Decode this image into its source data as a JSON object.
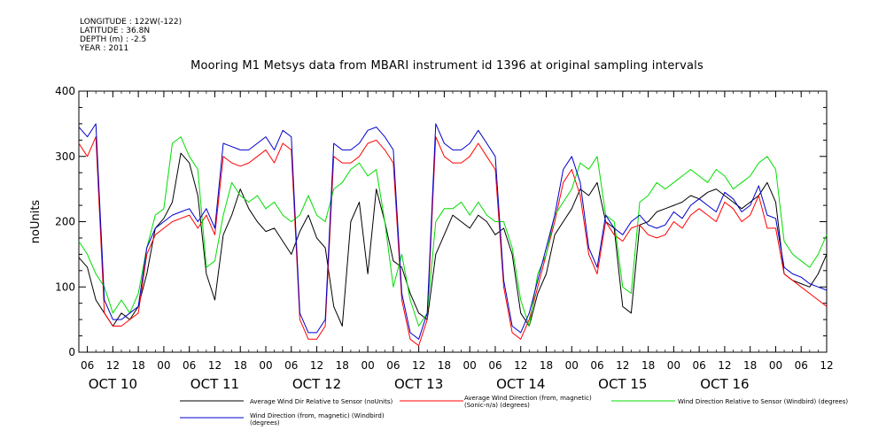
{
  "meta": [
    "LONGITUDE : 122W(-122)",
    "LATITUDE : 36.8N",
    "DEPTH (m) : -2.5",
    "YEAR : 2011"
  ],
  "chart_data": {
    "type": "line",
    "title": "Mooring M1 Metsys data from MBARI instrument id 1396 at original sampling intervals",
    "ylabel": "noUnits",
    "xlabel": "",
    "ylim": [
      0,
      400
    ],
    "y_ticks": [
      "0",
      "100",
      "200",
      "300",
      "400"
    ],
    "x_range_hours": [
      4,
      180
    ],
    "x_hour_ticks": [
      {
        "h": 6,
        "label": "06"
      },
      {
        "h": 12,
        "label": "12"
      },
      {
        "h": 18,
        "label": "18"
      },
      {
        "h": 24,
        "label": "00"
      },
      {
        "h": 30,
        "label": "06"
      },
      {
        "h": 36,
        "label": "12"
      },
      {
        "h": 42,
        "label": "18"
      },
      {
        "h": 48,
        "label": "00"
      },
      {
        "h": 54,
        "label": "06"
      },
      {
        "h": 60,
        "label": "12"
      },
      {
        "h": 66,
        "label": "18"
      },
      {
        "h": 72,
        "label": "00"
      },
      {
        "h": 78,
        "label": "06"
      },
      {
        "h": 84,
        "label": "12"
      },
      {
        "h": 90,
        "label": "18"
      },
      {
        "h": 96,
        "label": "00"
      },
      {
        "h": 102,
        "label": "06"
      },
      {
        "h": 108,
        "label": "12"
      },
      {
        "h": 114,
        "label": "18"
      },
      {
        "h": 120,
        "label": "00"
      },
      {
        "h": 126,
        "label": "06"
      },
      {
        "h": 132,
        "label": "12"
      },
      {
        "h": 138,
        "label": "18"
      },
      {
        "h": 144,
        "label": "00"
      },
      {
        "h": 150,
        "label": "06"
      },
      {
        "h": 156,
        "label": "12"
      },
      {
        "h": 162,
        "label": "18"
      },
      {
        "h": 168,
        "label": "00"
      },
      {
        "h": 174,
        "label": "06"
      },
      {
        "h": 180,
        "label": "12"
      }
    ],
    "x_day_labels": [
      {
        "h": 12,
        "label": "OCT 10"
      },
      {
        "h": 36,
        "label": "OCT 11"
      },
      {
        "h": 60,
        "label": "OCT 12"
      },
      {
        "h": 84,
        "label": "OCT 13"
      },
      {
        "h": 108,
        "label": "OCT 14"
      },
      {
        "h": 132,
        "label": "OCT 15"
      },
      {
        "h": 156,
        "label": "OCT 16"
      }
    ],
    "grid": false,
    "series": [
      {
        "name": "Average Wind Dir Relative to Sensor (noUnits)",
        "color": "#000000",
        "x": [
          4,
          6,
          8,
          10,
          12,
          14,
          16,
          18,
          20,
          22,
          24,
          26,
          28,
          30,
          32,
          34,
          36,
          38,
          40,
          42,
          44,
          46,
          48,
          50,
          52,
          54,
          56,
          58,
          60,
          62,
          64,
          66,
          68,
          70,
          72,
          74,
          76,
          78,
          80,
          82,
          84,
          86,
          88,
          90,
          92,
          94,
          96,
          98,
          100,
          102,
          104,
          106,
          108,
          110,
          112,
          114,
          116,
          118,
          120,
          122,
          124,
          126,
          128,
          130,
          132,
          134,
          136,
          138,
          140,
          142,
          144,
          146,
          148,
          150,
          152,
          154,
          156,
          158,
          160,
          162,
          164,
          166,
          168,
          170,
          172,
          174,
          176,
          178,
          180
        ],
        "values": [
          145,
          130,
          80,
          60,
          40,
          60,
          50,
          70,
          120,
          190,
          205,
          230,
          305,
          290,
          240,
          120,
          80,
          180,
          210,
          250,
          220,
          200,
          185,
          190,
          170,
          150,
          185,
          210,
          175,
          160,
          70,
          40,
          200,
          230,
          120,
          250,
          200,
          140,
          130,
          90,
          60,
          50,
          150,
          180,
          210,
          200,
          190,
          210,
          200,
          180,
          190,
          150,
          60,
          40,
          90,
          120,
          180,
          200,
          220,
          250,
          240,
          260,
          200,
          190,
          70,
          60,
          195,
          200,
          215,
          220,
          225,
          230,
          240,
          235,
          245,
          250,
          240,
          230,
          220,
          230,
          240,
          260,
          230,
          120,
          110,
          105,
          100,
          120,
          150
        ]
      },
      {
        "name": "Average Wind Direction (from, magnetic) (Sonic-n/a) (degrees)",
        "color": "#ff0000",
        "x": [
          4,
          6,
          8,
          10,
          12,
          14,
          16,
          18,
          20,
          22,
          24,
          26,
          28,
          30,
          32,
          34,
          36,
          38,
          40,
          42,
          44,
          46,
          48,
          50,
          52,
          54,
          56,
          58,
          60,
          62,
          64,
          66,
          68,
          70,
          72,
          74,
          76,
          78,
          80,
          82,
          84,
          86,
          88,
          90,
          92,
          94,
          96,
          98,
          100,
          102,
          104,
          106,
          108,
          110,
          112,
          114,
          116,
          118,
          120,
          122,
          124,
          126,
          128,
          130,
          132,
          134,
          136,
          138,
          140,
          142,
          144,
          146,
          148,
          150,
          152,
          154,
          156,
          158,
          160,
          162,
          164,
          166,
          168,
          170,
          172,
          174,
          176,
          178,
          180
        ],
        "values": [
          320,
          300,
          330,
          60,
          40,
          40,
          50,
          60,
          150,
          180,
          190,
          200,
          205,
          210,
          190,
          210,
          180,
          300,
          290,
          285,
          290,
          300,
          310,
          290,
          320,
          310,
          50,
          20,
          20,
          40,
          300,
          290,
          290,
          300,
          320,
          325,
          310,
          290,
          80,
          20,
          10,
          50,
          330,
          300,
          290,
          290,
          300,
          320,
          300,
          280,
          100,
          30,
          20,
          50,
          100,
          150,
          200,
          260,
          280,
          240,
          150,
          120,
          200,
          180,
          170,
          190,
          195,
          180,
          175,
          180,
          200,
          190,
          210,
          220,
          210,
          200,
          230,
          220,
          200,
          210,
          240,
          190,
          190,
          120,
          110,
          100,
          90,
          80,
          70
        ]
      },
      {
        "name": "Wind Direction Relative to Sensor (Windbird) (degrees)",
        "color": "#00dd00",
        "x": [
          4,
          6,
          8,
          10,
          12,
          14,
          16,
          18,
          20,
          22,
          24,
          26,
          28,
          30,
          32,
          34,
          36,
          38,
          40,
          42,
          44,
          46,
          48,
          50,
          52,
          54,
          56,
          58,
          60,
          62,
          64,
          66,
          68,
          70,
          72,
          74,
          76,
          78,
          80,
          82,
          84,
          86,
          88,
          90,
          92,
          94,
          96,
          98,
          100,
          102,
          104,
          106,
          108,
          110,
          112,
          114,
          116,
          118,
          120,
          122,
          124,
          126,
          128,
          130,
          132,
          134,
          136,
          138,
          140,
          142,
          144,
          146,
          148,
          150,
          152,
          154,
          156,
          158,
          160,
          162,
          164,
          166,
          168,
          170,
          172,
          174,
          176,
          178,
          180
        ],
        "values": [
          170,
          150,
          120,
          100,
          60,
          80,
          60,
          90,
          160,
          210,
          220,
          320,
          330,
          300,
          280,
          130,
          140,
          210,
          260,
          240,
          230,
          240,
          220,
          230,
          210,
          200,
          210,
          240,
          210,
          200,
          250,
          260,
          280,
          290,
          270,
          280,
          200,
          100,
          150,
          80,
          40,
          60,
          200,
          220,
          220,
          230,
          210,
          230,
          210,
          200,
          200,
          160,
          80,
          40,
          120,
          150,
          210,
          230,
          250,
          290,
          280,
          300,
          210,
          200,
          100,
          90,
          230,
          240,
          260,
          250,
          260,
          270,
          280,
          270,
          260,
          280,
          270,
          250,
          260,
          270,
          290,
          300,
          280,
          170,
          150,
          140,
          130,
          150,
          180
        ]
      },
      {
        "name": "Wind Direction (from, magnetic) (Windbird) (degrees)",
        "color": "#0000cc",
        "x": [
          4,
          6,
          8,
          10,
          12,
          14,
          16,
          18,
          20,
          22,
          24,
          26,
          28,
          30,
          32,
          34,
          36,
          38,
          40,
          42,
          44,
          46,
          48,
          50,
          52,
          54,
          56,
          58,
          60,
          62,
          64,
          66,
          68,
          70,
          72,
          74,
          76,
          78,
          80,
          82,
          84,
          86,
          88,
          90,
          92,
          94,
          96,
          98,
          100,
          102,
          104,
          106,
          108,
          110,
          112,
          114,
          116,
          118,
          120,
          122,
          124,
          126,
          128,
          130,
          132,
          134,
          136,
          138,
          140,
          142,
          144,
          146,
          148,
          150,
          152,
          154,
          156,
          158,
          160,
          162,
          164,
          166,
          168,
          170,
          172,
          174,
          176,
          178,
          180
        ],
        "values": [
          345,
          330,
          350,
          80,
          50,
          50,
          60,
          70,
          160,
          190,
          200,
          210,
          215,
          220,
          200,
          220,
          190,
          320,
          315,
          310,
          310,
          320,
          330,
          310,
          340,
          330,
          60,
          30,
          30,
          50,
          320,
          310,
          310,
          320,
          340,
          345,
          330,
          310,
          90,
          30,
          20,
          60,
          350,
          320,
          310,
          310,
          320,
          340,
          320,
          300,
          110,
          40,
          30,
          60,
          110,
          160,
          210,
          280,
          300,
          260,
          160,
          130,
          210,
          190,
          180,
          200,
          210,
          195,
          190,
          195,
          215,
          205,
          225,
          235,
          225,
          215,
          245,
          235,
          215,
          225,
          255,
          210,
          205,
          130,
          120,
          115,
          105,
          100,
          95
        ]
      }
    ]
  }
}
